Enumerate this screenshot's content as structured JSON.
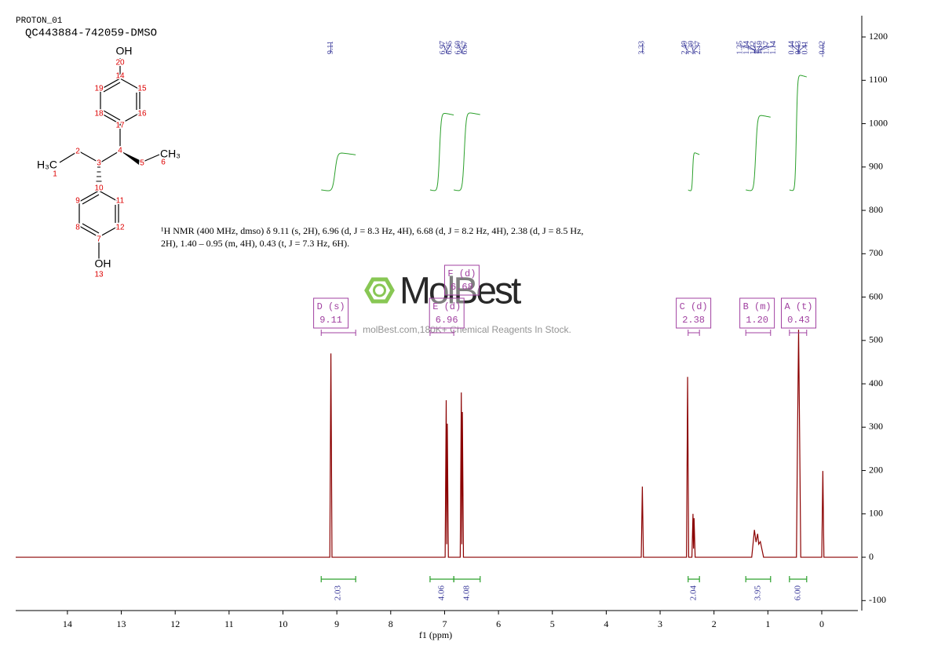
{
  "header": {
    "title": "PROTON_01",
    "sample": "QC443884-742059-DMSO"
  },
  "molecule": {
    "atoms": [
      "OH",
      "20",
      "14",
      "15",
      "16",
      "17",
      "18",
      "19",
      "4",
      "5",
      "CH₃",
      "6",
      "3",
      "2",
      "H₃C",
      "1",
      "10",
      "11",
      "12",
      "7",
      "8",
      "9",
      "OH",
      "13"
    ]
  },
  "description": "¹H NMR (400 MHz, dmso) δ 9.11 (s, 2H), 6.96 (d, J = 8.3 Hz, 4H), 6.68 (d, J = 8.2 Hz, 4H), 2.38 (d, J = 8.5 Hz, 2H), 1.40 – 0.95 (m, 4H), 0.43 (t, J = 7.3 Hz, 6H).",
  "watermark": {
    "brand": "MolBest",
    "tagline": "molBest.com,180K+ Chemical Reagents In Stock."
  },
  "chart_data": {
    "type": "line",
    "xlabel": "f1  (ppm)",
    "x": [
      14.96,
      9.13,
      9.11,
      9.09,
      6.99,
      6.97,
      6.96,
      6.95,
      6.93,
      6.71,
      6.69,
      6.68,
      6.67,
      6.65,
      3.35,
      3.33,
      3.31,
      2.51,
      2.49,
      2.47,
      2.41,
      2.39,
      2.38,
      2.37,
      2.35,
      1.3,
      1.25,
      1.22,
      1.19,
      1.17,
      1.14,
      1.08,
      0.47,
      0.45,
      0.43,
      0.41,
      0.39,
      0.0,
      -0.02,
      -0.04,
      -0.67
    ],
    "values": [
      0,
      0,
      470,
      0,
      0,
      362,
      30,
      308,
      0,
      0,
      380,
      30,
      335,
      0,
      0,
      163,
      0,
      0,
      416,
      0,
      0,
      100,
      20,
      90,
      0,
      0,
      63,
      35,
      54,
      30,
      36,
      0,
      0,
      280,
      525,
      270,
      0,
      0,
      199,
      0,
      0
    ],
    "color": "#8b0000",
    "xlim": [
      14.96,
      -0.67
    ],
    "ylim": [
      -123,
      1249
    ],
    "xticks": [
      14,
      13,
      12,
      11,
      10,
      9,
      8,
      7,
      6,
      5,
      4,
      3,
      2,
      1,
      0
    ],
    "yticks": [
      -100,
      0,
      100,
      200,
      300,
      400,
      500,
      600,
      700,
      800,
      900,
      1000,
      1100,
      1200
    ],
    "peak_labels": [
      9.11,
      6.97,
      6.95,
      6.69,
      6.67,
      3.33,
      2.49,
      2.39,
      2.37,
      1.25,
      1.24,
      1.22,
      1.19,
      1.17,
      1.14,
      0.44,
      0.43,
      0.41,
      -0.02
    ],
    "peak_label_color": "#3a3a9a",
    "integrals": [
      {
        "from": 9.29,
        "to": 8.65,
        "value": 2.03,
        "label": "2.03"
      },
      {
        "from": 7.27,
        "to": 6.83,
        "value": 4.06,
        "label": "4.06"
      },
      {
        "from": 6.83,
        "to": 6.34,
        "value": 4.08,
        "label": "4.08"
      },
      {
        "from": 2.48,
        "to": 2.27,
        "value": 2.04,
        "label": "2.04"
      },
      {
        "from": 1.41,
        "to": 0.95,
        "value": 3.95,
        "label": "3.95"
      },
      {
        "from": 0.6,
        "to": 0.28,
        "value": 6,
        "label": "6.00"
      }
    ],
    "integral_color": "#2ca02c",
    "multiplets": [
      {
        "name": "D (s)",
        "shift": 9.11,
        "shift_label": "9.11",
        "from": 9.29,
        "to": 8.65
      },
      {
        "name": "E (d)",
        "shift": 6.96,
        "shift_label": "6.96",
        "from": 7.27,
        "to": 6.83
      },
      {
        "name": "F (d)",
        "shift": 6.68,
        "shift_label": "6.68",
        "from": 6.83,
        "to": 6.34
      },
      {
        "name": "C (d)",
        "shift": 2.38,
        "shift_label": "2.38",
        "from": 2.48,
        "to": 2.27
      },
      {
        "name": "B (m)",
        "shift": 1.2,
        "shift_label": "1.20",
        "from": 1.41,
        "to": 0.95
      },
      {
        "name": "A (t)",
        "shift": 0.43,
        "shift_label": "0.43",
        "from": 0.6,
        "to": 0.28
      }
    ],
    "multiplet_color": "#a040a0"
  }
}
